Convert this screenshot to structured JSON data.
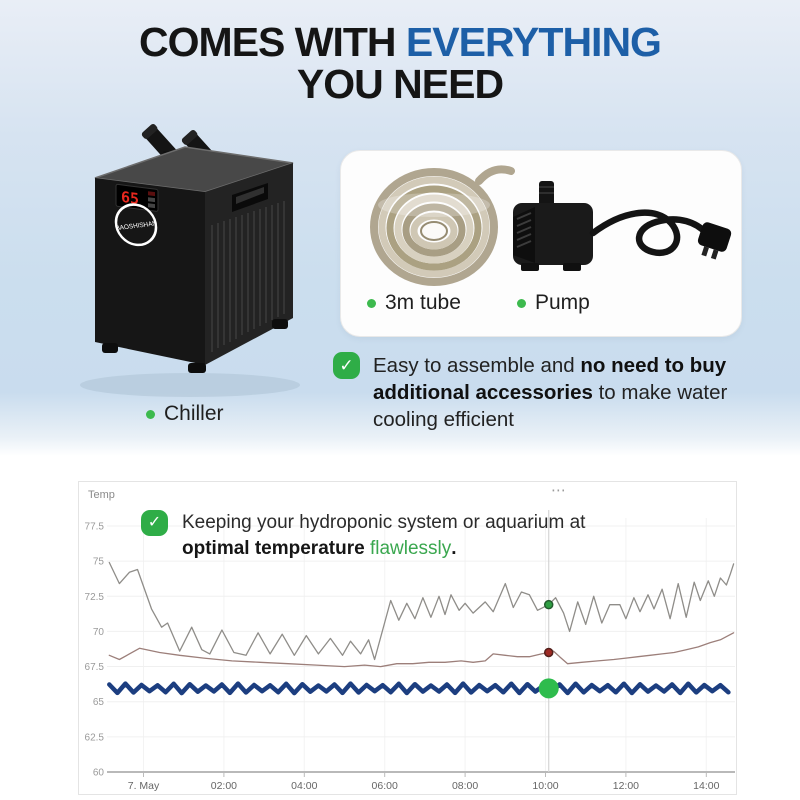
{
  "header": {
    "title_part1": "COMES WITH ",
    "title_highlight": "EVERYTHING",
    "title_line2": "YOU NEED",
    "highlight_color": "#1d5fa7"
  },
  "products": {
    "chiller": {
      "label": "Chiller",
      "display_value": "65",
      "brand": "BAOSHISHAN"
    },
    "tube": {
      "label": "3m tube"
    },
    "pump": {
      "label": "Pump"
    },
    "bullet_color": "#3dba4e"
  },
  "feature_note": {
    "check": "✓",
    "prefix": "Easy to assemble and ",
    "bold": "no need to buy additional accessories",
    "suffix": " to make water cooling efficient"
  },
  "chart_note": {
    "check": "✓",
    "prefix": "Keeping your hydroponic system or aquarium at ",
    "bold": "optimal temperature ",
    "highlight": "flawlessly",
    "period": ".",
    "highlight_color": "#3aa74f"
  },
  "chart_panel": {
    "title": "Temp",
    "menu": "⋯"
  },
  "chart_data": {
    "type": "line",
    "title": "Temp",
    "xlabel": "",
    "ylabel": "",
    "grid": true,
    "legend": "none",
    "y_axis": {
      "ticks": [
        60,
        62.5,
        65,
        67.5,
        70,
        72.5,
        75,
        77.5
      ],
      "range": [
        60,
        78.5
      ]
    },
    "x_axis": {
      "range_hours": [
        -0.95,
        14.8
      ],
      "ticks": [
        {
          "h": 0,
          "label": "7. May"
        },
        {
          "h": 2,
          "label": "02:00"
        },
        {
          "h": 4,
          "label": "04:00"
        },
        {
          "h": 6,
          "label": "06:00"
        },
        {
          "h": 8,
          "label": "08:00"
        },
        {
          "h": 10,
          "label": "10:00"
        },
        {
          "h": 12,
          "label": "12:00"
        },
        {
          "h": 14,
          "label": "14:00"
        }
      ]
    },
    "series": [
      {
        "id": "gray-line",
        "color": "#8f8d89",
        "width": 1.3,
        "points": [
          [
            -0.85,
            74.9
          ],
          [
            -0.6,
            73.4
          ],
          [
            -0.35,
            74.2
          ],
          [
            -0.15,
            74.4
          ],
          [
            0.2,
            71.6
          ],
          [
            0.45,
            70.3
          ],
          [
            0.6,
            70.6
          ],
          [
            0.9,
            68.6
          ],
          [
            1.2,
            70.3
          ],
          [
            1.45,
            68.7
          ],
          [
            1.65,
            68.4
          ],
          [
            1.95,
            70.1
          ],
          [
            2.25,
            68.5
          ],
          [
            2.55,
            68.3
          ],
          [
            2.85,
            69.9
          ],
          [
            3.15,
            68.4
          ],
          [
            3.45,
            69.8
          ],
          [
            3.75,
            68.3
          ],
          [
            4.05,
            69.7
          ],
          [
            4.35,
            68.4
          ],
          [
            4.65,
            69.5
          ],
          [
            4.95,
            68.3
          ],
          [
            5.15,
            69.3
          ],
          [
            5.4,
            68.4
          ],
          [
            5.6,
            69.4
          ],
          [
            5.75,
            68.0
          ],
          [
            6.15,
            72.2
          ],
          [
            6.35,
            70.8
          ],
          [
            6.55,
            72.0
          ],
          [
            6.75,
            70.9
          ],
          [
            6.95,
            72.4
          ],
          [
            7.15,
            71.0
          ],
          [
            7.35,
            72.5
          ],
          [
            7.5,
            71.2
          ],
          [
            7.65,
            72.6
          ],
          [
            7.85,
            71.5
          ],
          [
            8.0,
            72.0
          ],
          [
            8.2,
            71.3
          ],
          [
            8.5,
            72.1
          ],
          [
            8.7,
            71.4
          ],
          [
            9.0,
            73.4
          ],
          [
            9.2,
            71.7
          ],
          [
            9.4,
            72.8
          ],
          [
            9.6,
            72.6
          ],
          [
            9.8,
            71.5
          ],
          [
            10.08,
            71.9
          ],
          [
            10.25,
            72.4
          ],
          [
            10.45,
            71.3
          ],
          [
            10.6,
            70.0
          ],
          [
            10.8,
            72.1
          ],
          [
            11.0,
            70.5
          ],
          [
            11.2,
            72.5
          ],
          [
            11.4,
            70.6
          ],
          [
            11.6,
            71.9
          ],
          [
            11.85,
            71.9
          ],
          [
            12.0,
            70.9
          ],
          [
            12.2,
            72.4
          ],
          [
            12.35,
            71.4
          ],
          [
            12.55,
            72.6
          ],
          [
            12.7,
            71.6
          ],
          [
            12.9,
            73.0
          ],
          [
            13.1,
            70.9
          ],
          [
            13.3,
            73.4
          ],
          [
            13.5,
            71.0
          ],
          [
            13.7,
            73.5
          ],
          [
            13.85,
            72.2
          ],
          [
            14.05,
            73.6
          ],
          [
            14.2,
            72.5
          ],
          [
            14.35,
            73.8
          ],
          [
            14.5,
            73.3
          ],
          [
            14.6,
            74.1
          ],
          [
            14.68,
            74.8
          ]
        ]
      },
      {
        "id": "brown-line",
        "color": "#9c7f7a",
        "width": 1.3,
        "points": [
          [
            -0.85,
            68.3
          ],
          [
            -0.6,
            68.0
          ],
          [
            -0.1,
            68.8
          ],
          [
            0.4,
            68.5
          ],
          [
            0.9,
            68.3
          ],
          [
            1.5,
            68.1
          ],
          [
            2.2,
            67.9
          ],
          [
            2.9,
            67.8
          ],
          [
            3.6,
            67.7
          ],
          [
            4.3,
            67.6
          ],
          [
            5.0,
            67.5
          ],
          [
            5.5,
            67.6
          ],
          [
            5.9,
            67.5
          ],
          [
            6.3,
            67.7
          ],
          [
            6.7,
            67.7
          ],
          [
            7.1,
            67.8
          ],
          [
            7.5,
            67.8
          ],
          [
            7.9,
            67.9
          ],
          [
            8.2,
            67.8
          ],
          [
            8.5,
            67.9
          ],
          [
            8.7,
            68.4
          ],
          [
            9.0,
            68.3
          ],
          [
            9.3,
            68.2
          ],
          [
            9.6,
            68.2
          ],
          [
            9.9,
            68.4
          ],
          [
            10.08,
            68.5
          ],
          [
            10.2,
            68.6
          ],
          [
            10.35,
            68.2
          ],
          [
            10.55,
            67.7
          ],
          [
            10.9,
            67.8
          ],
          [
            11.3,
            67.9
          ],
          [
            11.7,
            68.0
          ],
          [
            12.0,
            68.1
          ],
          [
            12.3,
            68.2
          ],
          [
            12.6,
            68.3
          ],
          [
            12.9,
            68.4
          ],
          [
            13.2,
            68.5
          ],
          [
            13.5,
            68.7
          ],
          [
            13.8,
            68.9
          ],
          [
            14.1,
            69.2
          ],
          [
            14.35,
            69.4
          ],
          [
            14.55,
            69.7
          ],
          [
            14.68,
            69.9
          ]
        ]
      },
      {
        "id": "blue-line",
        "color": "#1c3e80",
        "width": 4.5,
        "zigzag": {
          "base": 65.95,
          "amp": 0.27,
          "period": 0.4,
          "start": -0.85,
          "end": 14.68
        }
      }
    ],
    "crosshair": {
      "h": 10.08,
      "markers": [
        {
          "v": 71.9,
          "r": 4,
          "fill": "#2f9e43",
          "ring": "#235c2e"
        },
        {
          "v": 68.5,
          "r": 4,
          "fill": "#9e2a24",
          "ring": "#53201b"
        },
        {
          "v": 65.95,
          "r": 10,
          "fill": "#2ebc4d",
          "ring": "none"
        }
      ]
    }
  }
}
